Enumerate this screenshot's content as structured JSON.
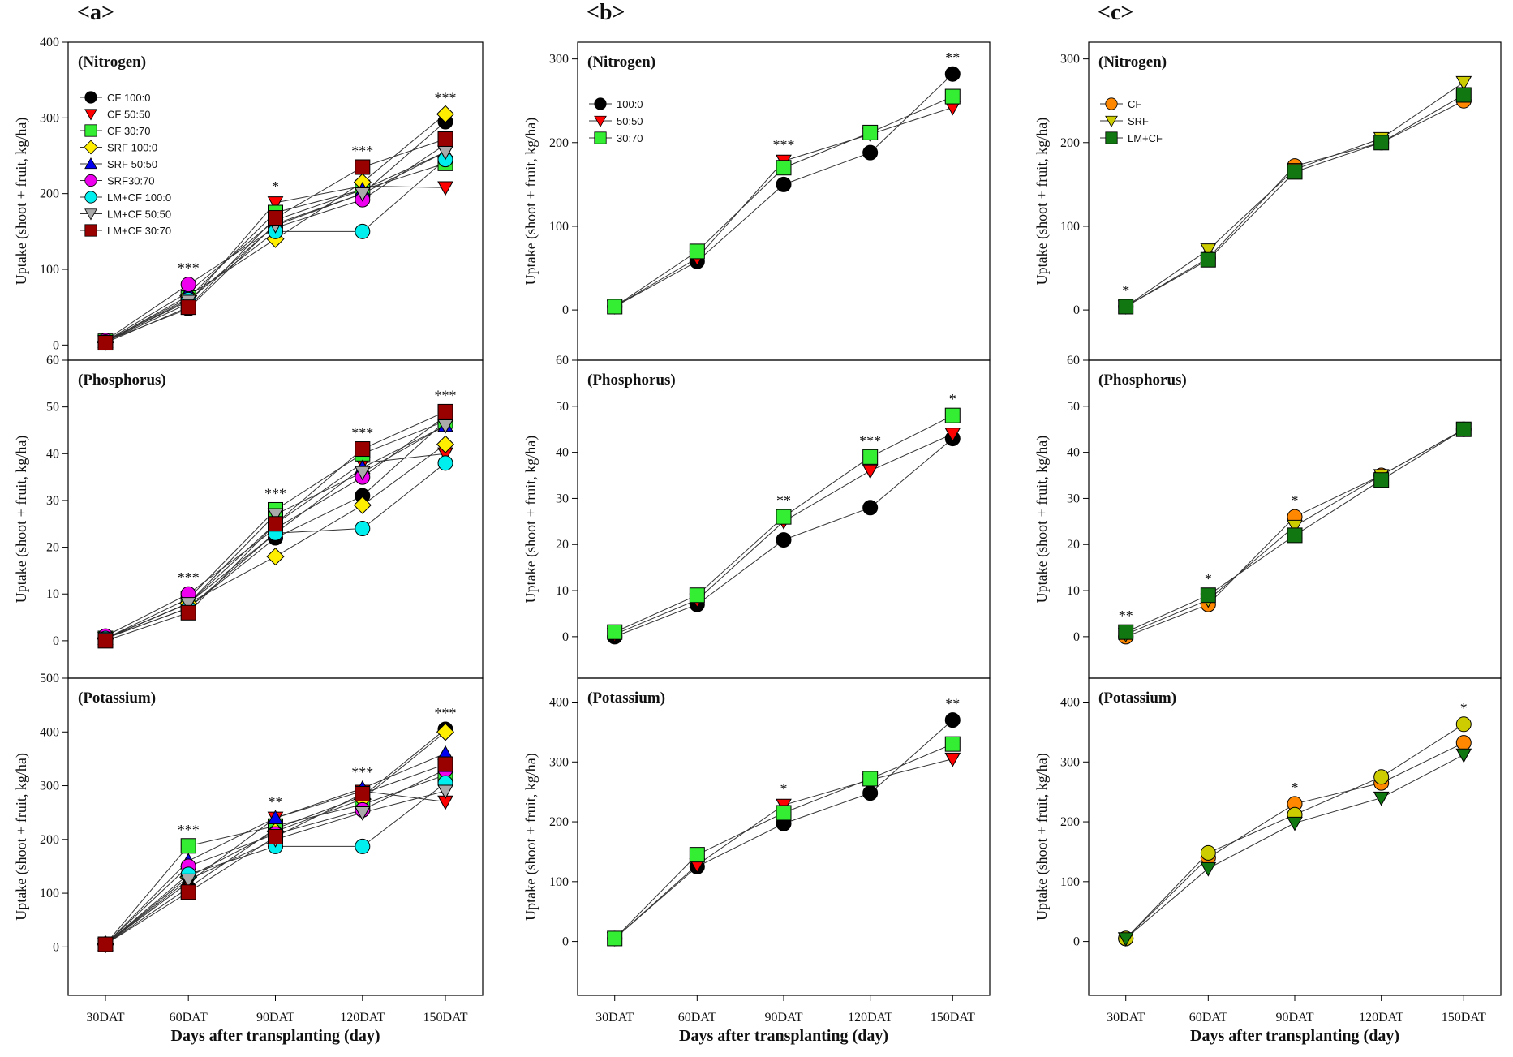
{
  "panel_letters": [
    "<a>",
    "<b>",
    "<c>"
  ],
  "xlabel": "Days after transplanting (day)",
  "chart_data": [
    {
      "type": "line",
      "id": "a-nitrogen",
      "column": 0,
      "row": 0,
      "panel_label": "(Nitrogen)",
      "ylabel": "Uptake (shoot + fruit, kg/ha)",
      "ylim": [
        -20,
        400
      ],
      "yticks": [
        0,
        100,
        200,
        300,
        400
      ],
      "categories": [
        "30DAT",
        "60DAT",
        "90DAT",
        "120DAT",
        "150DAT"
      ],
      "significance": [
        "",
        "***",
        "*",
        "***",
        "***"
      ],
      "series": [
        {
          "name": "CF 100:0",
          "marker": "circle",
          "color": "#000000",
          "values": [
            5,
            48,
            160,
            200,
            295
          ]
        },
        {
          "name": "CF 50:50",
          "marker": "triangle-down",
          "color": "#ff0000",
          "values": [
            4,
            55,
            188,
            210,
            208
          ]
        },
        {
          "name": "CF 30:70",
          "marker": "square",
          "color": "#33ee33",
          "values": [
            5,
            62,
            175,
            205,
            240
          ]
        },
        {
          "name": "SRF 100:0",
          "marker": "diamond",
          "color": "#ffee00",
          "values": [
            4,
            65,
            140,
            215,
            305
          ]
        },
        {
          "name": "SRF 50:50",
          "marker": "triangle-up",
          "color": "#0000ee",
          "values": [
            5,
            70,
            165,
            205,
            255
          ]
        },
        {
          "name": "SRF30:70",
          "marker": "circle",
          "color": "#ee00ee",
          "values": [
            6,
            80,
            155,
            192,
            265
          ]
        },
        {
          "name": "LM+CF 100:0",
          "marker": "circle",
          "color": "#00eeee",
          "values": [
            4,
            60,
            150,
            150,
            245
          ]
        },
        {
          "name": "LM+CF 50:50",
          "marker": "triangle-down",
          "color": "#aaaaaa",
          "values": [
            5,
            58,
            158,
            200,
            255
          ]
        },
        {
          "name": "LM+CF 30:70",
          "marker": "square",
          "color": "#990000",
          "values": [
            3,
            50,
            168,
            235,
            272
          ]
        }
      ]
    },
    {
      "type": "line",
      "id": "a-phosphorus",
      "column": 0,
      "row": 1,
      "panel_label": "(Phosphorus)",
      "ylabel": "Uptake (shoot + fruit, kg/ha)",
      "ylim": [
        -8,
        60
      ],
      "yticks": [
        0,
        10,
        20,
        30,
        40,
        50,
        60
      ],
      "categories": [
        "30DAT",
        "60DAT",
        "90DAT",
        "120DAT",
        "150DAT"
      ],
      "significance": [
        "",
        "***",
        "***",
        "***",
        "***"
      ],
      "series": [
        {
          "name": "CF 100:0",
          "marker": "circle",
          "color": "#000000",
          "values": [
            0.5,
            7,
            22,
            31,
            47
          ]
        },
        {
          "name": "CF 50:50",
          "marker": "triangle-down",
          "color": "#ff0000",
          "values": [
            0.5,
            8,
            25,
            38,
            40
          ]
        },
        {
          "name": "CF 30:70",
          "marker": "square",
          "color": "#33ee33",
          "values": [
            0.5,
            9,
            28,
            40,
            47
          ]
        },
        {
          "name": "SRF 100:0",
          "marker": "diamond",
          "color": "#ffee00",
          "values": [
            0.5,
            8,
            18,
            29,
            42
          ]
        },
        {
          "name": "SRF 50:50",
          "marker": "triangle-up",
          "color": "#0000ee",
          "values": [
            0.5,
            8,
            23,
            37,
            46
          ]
        },
        {
          "name": "SRF30:70",
          "marker": "circle",
          "color": "#ee00ee",
          "values": [
            1,
            10,
            24,
            35,
            48
          ]
        },
        {
          "name": "LM+CF 100:0",
          "marker": "circle",
          "color": "#00eeee",
          "values": [
            0.5,
            7,
            23,
            24,
            38
          ]
        },
        {
          "name": "LM+CF 50:50",
          "marker": "triangle-down",
          "color": "#aaaaaa",
          "values": [
            0.5,
            8,
            27,
            36,
            46
          ]
        },
        {
          "name": "LM+CF 30:70",
          "marker": "square",
          "color": "#990000",
          "values": [
            0,
            6,
            25,
            41,
            49
          ]
        }
      ]
    },
    {
      "type": "line",
      "id": "a-potassium",
      "column": 0,
      "row": 2,
      "panel_label": "(Potassium)",
      "ylabel": "Uptake (shoot + fruit, kg/ha)",
      "ylim": [
        -90,
        500
      ],
      "yticks": [
        0,
        100,
        200,
        300,
        400,
        500
      ],
      "categories": [
        "30DAT",
        "60DAT",
        "90DAT",
        "120DAT",
        "150DAT"
      ],
      "significance": [
        "",
        "***",
        "**",
        "***",
        "***"
      ],
      "series": [
        {
          "name": "CF 100:0",
          "marker": "circle",
          "color": "#000000",
          "values": [
            5,
            110,
            220,
            280,
            405
          ]
        },
        {
          "name": "CF 50:50",
          "marker": "triangle-down",
          "color": "#ff0000",
          "values": [
            5,
            120,
            240,
            290,
            270
          ]
        },
        {
          "name": "CF 30:70",
          "marker": "square",
          "color": "#33ee33",
          "values": [
            5,
            188,
            225,
            265,
            320
          ]
        },
        {
          "name": "SRF 100:0",
          "marker": "diamond",
          "color": "#ffee00",
          "values": [
            5,
            130,
            215,
            275,
            400
          ]
        },
        {
          "name": "SRF 50:50",
          "marker": "triangle-up",
          "color": "#0000ee",
          "values": [
            5,
            160,
            240,
            295,
            360
          ]
        },
        {
          "name": "SRF30:70",
          "marker": "circle",
          "color": "#ee00ee",
          "values": [
            5,
            150,
            210,
            255,
            330
          ]
        },
        {
          "name": "LM+CF 100:0",
          "marker": "circle",
          "color": "#00eeee",
          "values": [
            5,
            135,
            187,
            187,
            305
          ]
        },
        {
          "name": "LM+CF 50:50",
          "marker": "triangle-down",
          "color": "#aaaaaa",
          "values": [
            5,
            125,
            200,
            250,
            290
          ]
        },
        {
          "name": "LM+CF 30:70",
          "marker": "square",
          "color": "#990000",
          "values": [
            5,
            102,
            205,
            285,
            340
          ]
        }
      ]
    },
    {
      "type": "line",
      "id": "b-nitrogen",
      "column": 1,
      "row": 0,
      "panel_label": "(Nitrogen)",
      "ylabel": "Uptake (shoot + fruit, kg/ha)",
      "ylim": [
        -60,
        320
      ],
      "yticks": [
        0,
        100,
        200,
        300
      ],
      "categories": [
        "30DAT",
        "60DAT",
        "90DAT",
        "120DAT",
        "150DAT"
      ],
      "significance": [
        "",
        "",
        "***",
        "",
        "**"
      ],
      "series": [
        {
          "name": "100:0",
          "marker": "circle",
          "color": "#000000",
          "values": [
            4,
            58,
            150,
            188,
            282
          ]
        },
        {
          "name": "50:50",
          "marker": "triangle-down",
          "color": "#ff0000",
          "values": [
            4,
            62,
            178,
            210,
            242
          ]
        },
        {
          "name": "30:70",
          "marker": "square",
          "color": "#33ee33",
          "values": [
            4,
            70,
            170,
            212,
            255
          ]
        }
      ]
    },
    {
      "type": "line",
      "id": "b-phosphorus",
      "column": 1,
      "row": 1,
      "panel_label": "(Phosphorus)",
      "ylabel": "Uptake (shoot + fruit, kg/ha)",
      "ylim": [
        -9,
        60
      ],
      "yticks": [
        0,
        10,
        20,
        30,
        40,
        50,
        60
      ],
      "categories": [
        "30DAT",
        "60DAT",
        "90DAT",
        "120DAT",
        "150DAT"
      ],
      "significance": [
        "",
        "",
        "**",
        "***",
        "*"
      ],
      "series": [
        {
          "name": "100:0",
          "marker": "circle",
          "color": "#000000",
          "values": [
            0,
            7,
            21,
            28,
            43
          ]
        },
        {
          "name": "50:50",
          "marker": "triangle-down",
          "color": "#ff0000",
          "values": [
            0.5,
            8,
            25,
            36,
            44
          ]
        },
        {
          "name": "30:70",
          "marker": "square",
          "color": "#33ee33",
          "values": [
            1,
            9,
            26,
            39,
            48
          ]
        }
      ]
    },
    {
      "type": "line",
      "id": "b-potassium",
      "column": 1,
      "row": 2,
      "panel_label": "(Potassium)",
      "ylabel": "Uptake (shoot + fruit, kg/ha)",
      "ylim": [
        -90,
        440
      ],
      "yticks": [
        0,
        100,
        200,
        300,
        400
      ],
      "categories": [
        "30DAT",
        "60DAT",
        "90DAT",
        "120DAT",
        "150DAT"
      ],
      "significance": [
        "",
        "",
        "*",
        "",
        "**"
      ],
      "series": [
        {
          "name": "100:0",
          "marker": "circle",
          "color": "#000000",
          "values": [
            5,
            125,
            197,
            248,
            370
          ]
        },
        {
          "name": "50:50",
          "marker": "triangle-down",
          "color": "#ff0000",
          "values": [
            5,
            128,
            228,
            270,
            305
          ]
        },
        {
          "name": "30:70",
          "marker": "square",
          "color": "#33ee33",
          "values": [
            5,
            145,
            215,
            272,
            330
          ]
        }
      ]
    },
    {
      "type": "line",
      "id": "c-nitrogen",
      "column": 2,
      "row": 0,
      "panel_label": "(Nitrogen)",
      "ylabel": "Uptake (shoot + fruit, kg/ha)",
      "ylim": [
        -60,
        320
      ],
      "yticks": [
        0,
        100,
        200,
        300
      ],
      "categories": [
        "30DAT",
        "60DAT",
        "90DAT",
        "120DAT",
        "150DAT"
      ],
      "significance": [
        "*",
        "",
        "",
        "",
        ""
      ],
      "series": [
        {
          "name": "CF",
          "marker": "circle",
          "color": "#ff8800",
          "values": [
            4,
            62,
            172,
            200,
            250
          ]
        },
        {
          "name": "SRF",
          "marker": "triangle-down",
          "color": "#cccc00",
          "values": [
            4,
            72,
            168,
            205,
            272
          ]
        },
        {
          "name": "LM+CF",
          "marker": "square",
          "color": "#117711",
          "values": [
            4,
            60,
            165,
            200,
            257
          ]
        }
      ]
    },
    {
      "type": "line",
      "id": "c-phosphorus",
      "column": 2,
      "row": 1,
      "panel_label": "(Phosphorus)",
      "ylabel": "Uptake (shoot + fruit, kg/ha)",
      "ylim": [
        -9,
        60
      ],
      "yticks": [
        0,
        10,
        20,
        30,
        40,
        50,
        60
      ],
      "categories": [
        "30DAT",
        "60DAT",
        "90DAT",
        "120DAT",
        "150DAT"
      ],
      "significance": [
        "**",
        "*",
        "*",
        "",
        ""
      ],
      "series": [
        {
          "name": "CF",
          "marker": "circle",
          "color": "#ff8800",
          "values": [
            0,
            7,
            26,
            35,
            45
          ]
        },
        {
          "name": "SRF",
          "marker": "triangle-down",
          "color": "#cccc00",
          "values": [
            0.5,
            8,
            24,
            35,
            45
          ]
        },
        {
          "name": "LM+CF",
          "marker": "square",
          "color": "#117711",
          "values": [
            1,
            9,
            22,
            34,
            45
          ]
        }
      ]
    },
    {
      "type": "line",
      "id": "c-potassium",
      "column": 2,
      "row": 2,
      "panel_label": "(Potassium)",
      "ylabel": "Uptake (shoot + fruit, kg/ha)",
      "ylim": [
        -90,
        440
      ],
      "yticks": [
        0,
        100,
        200,
        300,
        400
      ],
      "categories": [
        "30DAT",
        "60DAT",
        "90DAT",
        "120DAT",
        "150DAT"
      ],
      "significance": [
        "",
        "",
        "*",
        "",
        "*"
      ],
      "series": [
        {
          "name": "CF",
          "marker": "circle",
          "color": "#ff8800",
          "values": [
            5,
            140,
            230,
            265,
            332
          ]
        },
        {
          "name": "SRF",
          "marker": "circle",
          "color": "#cccc00",
          "values": [
            5,
            148,
            212,
            275,
            363
          ]
        },
        {
          "name": "LM+CF",
          "marker": "triangle-down",
          "color": "#117711",
          "values": [
            5,
            122,
            198,
            240,
            312
          ]
        }
      ]
    }
  ],
  "legends": [
    {
      "panel": "a-nitrogen",
      "entries": [
        "CF 100:0",
        "CF 50:50",
        "CF 30:70",
        "SRF 100:0",
        "SRF 50:50",
        "SRF30:70",
        "LM+CF 100:0",
        "LM+CF 50:50",
        "LM+CF 30:70"
      ]
    },
    {
      "panel": "b-nitrogen",
      "entries": [
        "100:0",
        "50:50",
        "30:70"
      ]
    },
    {
      "panel": "c-nitrogen",
      "entries": [
        "CF",
        "SRF",
        "LM+CF"
      ]
    }
  ]
}
